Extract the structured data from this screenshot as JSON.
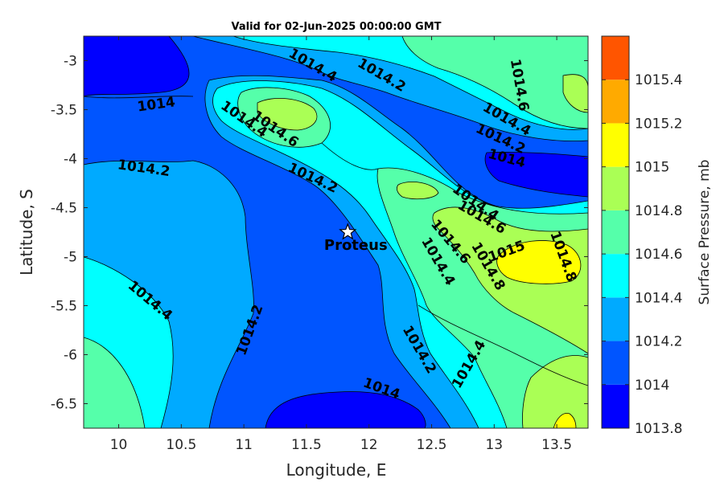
{
  "chart_data": {
    "type": "heatmap",
    "title": "Valid for 02-Jun-2025 00:00:00 GMT",
    "xlabel": "Longitude, E",
    "ylabel": "Latitude, S",
    "colorbar_label": "Surface Pressure, mb",
    "xlim": [
      9.72,
      13.75
    ],
    "ylim": [
      -6.75,
      -2.75
    ],
    "xticks": [
      10,
      10.5,
      11,
      11.5,
      12,
      12.5,
      13,
      13.5
    ],
    "xtick_labels": [
      "10",
      "10.5",
      "11",
      "11.5",
      "12",
      "12.5",
      "13",
      "13.5"
    ],
    "yticks": [
      -3,
      -3.5,
      -4,
      -4.5,
      -5,
      -5.5,
      -6,
      -6.5
    ],
    "ytick_labels": [
      "-3",
      "-3.5",
      "-4",
      "-4.5",
      "-5",
      "-5.5",
      "-6",
      "-6.5"
    ],
    "levels": [
      1013.8,
      1014,
      1014.2,
      1014.4,
      1014.6,
      1014.8,
      1015,
      1015.2,
      1015.4
    ],
    "level_labels": [
      "1013.8",
      "1014",
      "1014.2",
      "1014.4",
      "1014.6",
      "1014.8",
      "1015",
      "1015.2",
      "1015.4"
    ],
    "level_colors": [
      "#0000ff",
      "#0055ff",
      "#00aaff",
      "#00ffff",
      "#55ffaa",
      "#aaff55",
      "#ffff00",
      "#ffaa00",
      "#ff5500"
    ],
    "contour_labels": [
      {
        "text": "1014",
        "lon": 10.3,
        "lat": -3.45,
        "angle": -8
      },
      {
        "text": "1014.4",
        "lon": 11.55,
        "lat": -3.05,
        "angle": 30
      },
      {
        "text": "1014.2",
        "lon": 12.1,
        "lat": -3.15,
        "angle": 30
      },
      {
        "text": "1014.6",
        "lon": 13.2,
        "lat": -3.25,
        "angle": 80
      },
      {
        "text": "1014.4",
        "lon": 11.0,
        "lat": -3.6,
        "angle": 35
      },
      {
        "text": "1014.6",
        "lon": 11.25,
        "lat": -3.7,
        "angle": 35
      },
      {
        "text": "1014.4",
        "lon": 13.1,
        "lat": -3.6,
        "angle": 30
      },
      {
        "text": "1014.2",
        "lon": 13.05,
        "lat": -3.8,
        "angle": 25
      },
      {
        "text": "1014",
        "lon": 13.1,
        "lat": -4.0,
        "angle": 15
      },
      {
        "text": "1014.2",
        "lon": 10.2,
        "lat": -4.1,
        "angle": 8
      },
      {
        "text": "1014.2",
        "lon": 11.55,
        "lat": -4.2,
        "angle": 25
      },
      {
        "text": "1014.4",
        "lon": 12.85,
        "lat": -4.45,
        "angle": 35
      },
      {
        "text": "1014.6",
        "lon": 12.9,
        "lat": -4.6,
        "angle": 30
      },
      {
        "text": "1014.6",
        "lon": 12.65,
        "lat": -4.85,
        "angle": 50
      },
      {
        "text": "1014.4",
        "lon": 12.55,
        "lat": -5.05,
        "angle": 60
      },
      {
        "text": "1014.8",
        "lon": 12.95,
        "lat": -5.1,
        "angle": 60
      },
      {
        "text": "1015",
        "lon": 13.1,
        "lat": -4.95,
        "angle": -20
      },
      {
        "text": "1014.8",
        "lon": 13.55,
        "lat": -5.0,
        "angle": 70
      },
      {
        "text": "1014.4",
        "lon": 10.25,
        "lat": -5.45,
        "angle": 40
      },
      {
        "text": "1014.2",
        "lon": 11.05,
        "lat": -5.75,
        "angle": -70
      },
      {
        "text": "1014.2",
        "lon": 12.4,
        "lat": -5.95,
        "angle": 60
      },
      {
        "text": "1014.4",
        "lon": 12.8,
        "lat": -6.1,
        "angle": -60
      },
      {
        "text": "1014",
        "lon": 12.1,
        "lat": -6.35,
        "angle": 20
      }
    ],
    "markers": [
      {
        "label": "Proteus",
        "lon": 11.83,
        "lat": -4.75,
        "symbol": "star"
      }
    ]
  }
}
